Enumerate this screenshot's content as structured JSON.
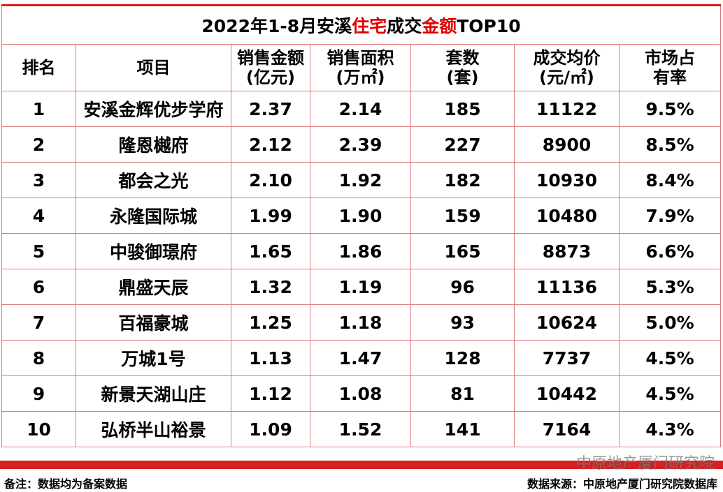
{
  "title": [
    "2022年1-8月安溪",
    "住宅",
    "成交",
    "金额",
    "TOP10"
  ],
  "header": [
    [
      "排名"
    ],
    [
      "项目"
    ],
    [
      "销售金额",
      "(亿元)"
    ],
    [
      "销售面积",
      "(万㎡)"
    ],
    [
      "套数",
      "(套)"
    ],
    [
      "成交均价",
      "(元/㎡)"
    ],
    [
      "市场占",
      "有率"
    ]
  ],
  "rows": [
    [
      "1",
      "安溪金辉优步学府",
      "2.37",
      "2.14",
      "185",
      "11122",
      "9.5%"
    ],
    [
      "2",
      "隆恩樾府",
      "2.12",
      "2.39",
      "227",
      "8900",
      "8.5%"
    ],
    [
      "3",
      "都会之光",
      "2.10",
      "1.92",
      "182",
      "10930",
      "8.4%"
    ],
    [
      "4",
      "永隆国际城",
      "1.99",
      "1.90",
      "159",
      "10480",
      "7.9%"
    ],
    [
      "5",
      "中骏御璟府",
      "1.65",
      "1.86",
      "165",
      "8873",
      "6.6%"
    ],
    [
      "6",
      "鼎盛天辰",
      "1.32",
      "1.19",
      "96",
      "11136",
      "5.3%"
    ],
    [
      "7",
      "百福豪城",
      "1.25",
      "1.18",
      "93",
      "10624",
      "5.0%"
    ],
    [
      "8",
      "万城1号",
      "1.13",
      "1.47",
      "128",
      "7737",
      "4.5%"
    ],
    [
      "9",
      "新景天湖山庄",
      "1.12",
      "1.08",
      "81",
      "10442",
      "4.5%"
    ],
    [
      "10",
      "弘桥半山裕景",
      "1.09",
      "1.52",
      "141",
      "7164",
      "4.3%"
    ]
  ],
  "note": "备注：数据均为备案数据",
  "source": "数据来源：中原地产厦门研究院数据库",
  "watermark": "中原地产厦门研究院"
}
